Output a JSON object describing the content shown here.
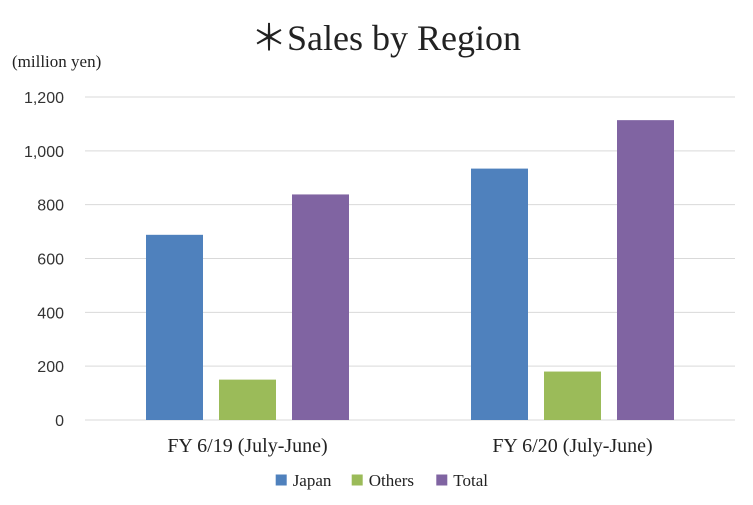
{
  "chart_data": {
    "type": "bar",
    "title": "＊Sales by Region",
    "ylabel": "(million yen)",
    "xlabel": "",
    "categories": [
      "FY 6/19 (July-June)",
      "FY 6/20 (July-June)"
    ],
    "series": [
      {
        "name": "Japan",
        "color": "#4f81bd",
        "values": [
          688,
          934
        ]
      },
      {
        "name": "Others",
        "color": "#9bbb59",
        "values": [
          150,
          180
        ]
      },
      {
        "name": "Total",
        "color": "#8064a2",
        "values": [
          838,
          1114
        ]
      }
    ],
    "ylim": [
      0,
      1200
    ],
    "yticks": [
      0,
      200,
      400,
      600,
      800,
      1000,
      1200
    ],
    "ytick_labels": [
      "0",
      "200",
      "400",
      "600",
      "800",
      "1,000",
      "1,200"
    ],
    "grid": true,
    "legend_position": "bottom"
  }
}
